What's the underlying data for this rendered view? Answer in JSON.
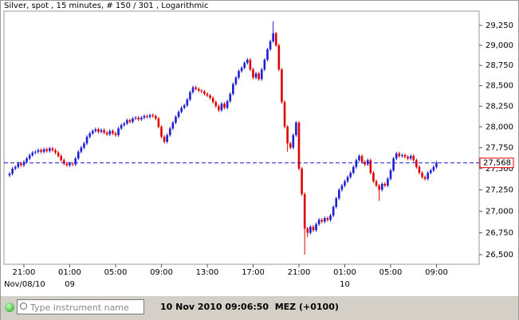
{
  "chart_data": {
    "type": "candlestick",
    "title": "Silver, spot , 15 minutes, # 150 / 301 , Logarithmic",
    "log_scale": true,
    "grid": false,
    "up_color": "#1e1ed2",
    "down_color": "#e00000",
    "ylim": [
      26390,
      29430
    ],
    "yticks": [
      {
        "value": 26500,
        "label": "26,500"
      },
      {
        "value": 26750,
        "label": "26,750"
      },
      {
        "value": 27000,
        "label": "27,000"
      },
      {
        "value": 27250,
        "label": "27,250"
      },
      {
        "value": 27500,
        "label": "27,500"
      },
      {
        "value": 27750,
        "label": "27,750"
      },
      {
        "value": 28000,
        "label": "28,000"
      },
      {
        "value": 28250,
        "label": "28,250"
      },
      {
        "value": 28500,
        "label": "28,500"
      },
      {
        "value": 28750,
        "label": "28,750"
      },
      {
        "value": 29000,
        "label": "29,000"
      },
      {
        "value": 29250,
        "label": "29,250"
      }
    ],
    "xticks": [
      "21:00",
      "01:00",
      "05:00",
      "09:00",
      "13:00",
      "17:00",
      "21:00",
      "01:00",
      "05:00",
      "09:00"
    ],
    "date_labels": [
      "Nov/08/10",
      "09",
      "10"
    ],
    "last_price": {
      "value": 27568,
      "label": "27,568"
    },
    "open": [
      27420,
      27440,
      27500,
      27520,
      27560,
      27540,
      27580,
      27620,
      27660,
      27690,
      27700,
      27720,
      27700,
      27730,
      27710,
      27740,
      27720,
      27690,
      27650,
      27600,
      27560,
      27540,
      27560,
      27550,
      27620,
      27700,
      27750,
      27800,
      27880,
      27920,
      27950,
      27970,
      27940,
      27960,
      27930,
      27910,
      27950,
      27920,
      27900,
      27980,
      28020,
      28040,
      28080,
      28060,
      28100,
      28110,
      28090,
      28110,
      28130,
      28120,
      28140,
      28130,
      28100,
      28000,
      27880,
      27820,
      27900,
      27980,
      28050,
      28120,
      28180,
      28230,
      28260,
      28330,
      28420,
      28480,
      28460,
      28440,
      28430,
      28400,
      28380,
      28350,
      28300,
      28250,
      28200,
      28280,
      28230,
      28310,
      28400,
      28520,
      28600,
      28680,
      28720,
      28780,
      28820,
      28700,
      28600,
      28650,
      28580,
      28700,
      28820,
      28950,
      29050,
      29150,
      29000,
      28700,
      28300,
      28000,
      27800,
      27750,
      27900,
      28050,
      27500,
      27200,
      26800,
      26750,
      26820,
      26780,
      26850,
      26900,
      26880,
      26920,
      26900,
      26950,
      27050,
      27150,
      27250,
      27300,
      27350,
      27400,
      27450,
      27520,
      27600,
      27650,
      27580,
      27550,
      27600,
      27450,
      27350,
      27300,
      27250,
      27320,
      27300,
      27380,
      27480,
      27620,
      27680,
      27650,
      27660,
      27640,
      27620,
      27650,
      27600,
      27520,
      27450,
      27400,
      27380,
      27450,
      27480,
      27520
    ],
    "high": [
      27460,
      27520,
      27540,
      27580,
      27580,
      27600,
      27640,
      27680,
      27710,
      27720,
      27740,
      27740,
      27750,
      27750,
      27760,
      27760,
      27740,
      27710,
      27670,
      27620,
      27580,
      27580,
      27580,
      27640,
      27720,
      27770,
      27820,
      27900,
      27940,
      27970,
      27990,
      27990,
      27980,
      27980,
      27950,
      27970,
      27970,
      27940,
      28000,
      28040,
      28060,
      28100,
      28100,
      28120,
      28130,
      28130,
      28130,
      28150,
      28150,
      28160,
      28160,
      28150,
      28120,
      28020,
      27900,
      27920,
      28000,
      28070,
      28140,
      28200,
      28250,
      28280,
      28350,
      28440,
      28500,
      28500,
      28480,
      28460,
      28450,
      28420,
      28400,
      28370,
      28320,
      28270,
      28300,
      28300,
      28330,
      28420,
      28540,
      28620,
      28700,
      28740,
      28800,
      28840,
      28840,
      28720,
      28670,
      28670,
      28720,
      28840,
      28970,
      29070,
      29300,
      29170,
      29020,
      28720,
      28320,
      28020,
      27820,
      27920,
      28070,
      28070,
      27520,
      27220,
      26820,
      26840,
      26840,
      26870,
      26920,
      26920,
      26940,
      26940,
      26970,
      27070,
      27170,
      27270,
      27320,
      27370,
      27420,
      27470,
      27540,
      27620,
      27670,
      27670,
      27600,
      27620,
      27620,
      27470,
      27370,
      27320,
      27340,
      27340,
      27400,
      27500,
      27640,
      27700,
      27700,
      27680,
      27680,
      27660,
      27670,
      27670,
      27620,
      27540,
      27470,
      27420,
      27470,
      27500,
      27540,
      27590
    ],
    "low": [
      27400,
      27420,
      27480,
      27500,
      27520,
      27520,
      27560,
      27600,
      27640,
      27670,
      27680,
      27680,
      27680,
      27690,
      27690,
      27700,
      27670,
      27630,
      27580,
      27540,
      27520,
      27520,
      27530,
      27530,
      27600,
      27680,
      27730,
      27780,
      27860,
      27900,
      27930,
      27920,
      27920,
      27910,
      27890,
      27890,
      27900,
      27880,
      27880,
      27960,
      28000,
      28020,
      28040,
      28040,
      28080,
      28070,
      28070,
      28090,
      28100,
      28100,
      28110,
      28080,
      27980,
      27860,
      27800,
      27800,
      27880,
      27960,
      28030,
      28100,
      28160,
      28210,
      28240,
      28310,
      28400,
      28440,
      28420,
      28410,
      28380,
      28360,
      28330,
      28280,
      28230,
      28180,
      28180,
      28210,
      28210,
      28290,
      28380,
      28500,
      28580,
      28660,
      28700,
      28760,
      28680,
      28580,
      28580,
      28560,
      28560,
      28680,
      28800,
      28930,
      29030,
      28980,
      28680,
      28280,
      27980,
      27700,
      27730,
      27730,
      27880,
      27480,
      27180,
      26500,
      26700,
      26730,
      26760,
      26760,
      26830,
      26860,
      26860,
      26880,
      26880,
      26930,
      27030,
      27130,
      27230,
      27280,
      27330,
      27380,
      27430,
      27500,
      27580,
      27560,
      27530,
      27530,
      27430,
      27330,
      27280,
      27120,
      27230,
      27280,
      27280,
      27360,
      27460,
      27600,
      27630,
      27630,
      27620,
      27600,
      27600,
      27580,
      27500,
      27430,
      27380,
      27360,
      27360,
      27430,
      27460,
      27500
    ],
    "close": [
      27440,
      27500,
      27520,
      27560,
      27540,
      27580,
      27620,
      27660,
      27690,
      27700,
      27720,
      27700,
      27730,
      27710,
      27740,
      27720,
      27690,
      27650,
      27600,
      27560,
      27540,
      27560,
      27550,
      27620,
      27700,
      27750,
      27800,
      27880,
      27920,
      27950,
      27970,
      27940,
      27960,
      27930,
      27910,
      27950,
      27920,
      27900,
      27980,
      28020,
      28040,
      28080,
      28060,
      28100,
      28110,
      28090,
      28110,
      28130,
      28120,
      28140,
      28130,
      28100,
      28000,
      27880,
      27820,
      27900,
      27980,
      28050,
      28120,
      28180,
      28230,
      28260,
      28330,
      28420,
      28480,
      28460,
      28440,
      28430,
      28400,
      28380,
      28350,
      28300,
      28250,
      28200,
      28280,
      28230,
      28310,
      28400,
      28520,
      28600,
      28680,
      28720,
      28780,
      28820,
      28700,
      28600,
      28650,
      28580,
      28700,
      28820,
      28950,
      29050,
      29150,
      29000,
      28700,
      28300,
      28000,
      27800,
      27750,
      27900,
      28050,
      27500,
      27200,
      26800,
      26750,
      26820,
      26780,
      26850,
      26900,
      26880,
      26920,
      26900,
      26950,
      27050,
      27150,
      27250,
      27300,
      27350,
      27400,
      27450,
      27520,
      27600,
      27650,
      27580,
      27550,
      27600,
      27450,
      27350,
      27300,
      27250,
      27320,
      27300,
      27380,
      27480,
      27620,
      27680,
      27650,
      27660,
      27640,
      27620,
      27650,
      27600,
      27520,
      27450,
      27400,
      27380,
      27450,
      27480,
      27520,
      27568
    ]
  },
  "toolbar": {
    "search_placeholder": "Type instrument name",
    "status": "10 Nov 2010 09:06:50  MEZ (+0100)"
  }
}
